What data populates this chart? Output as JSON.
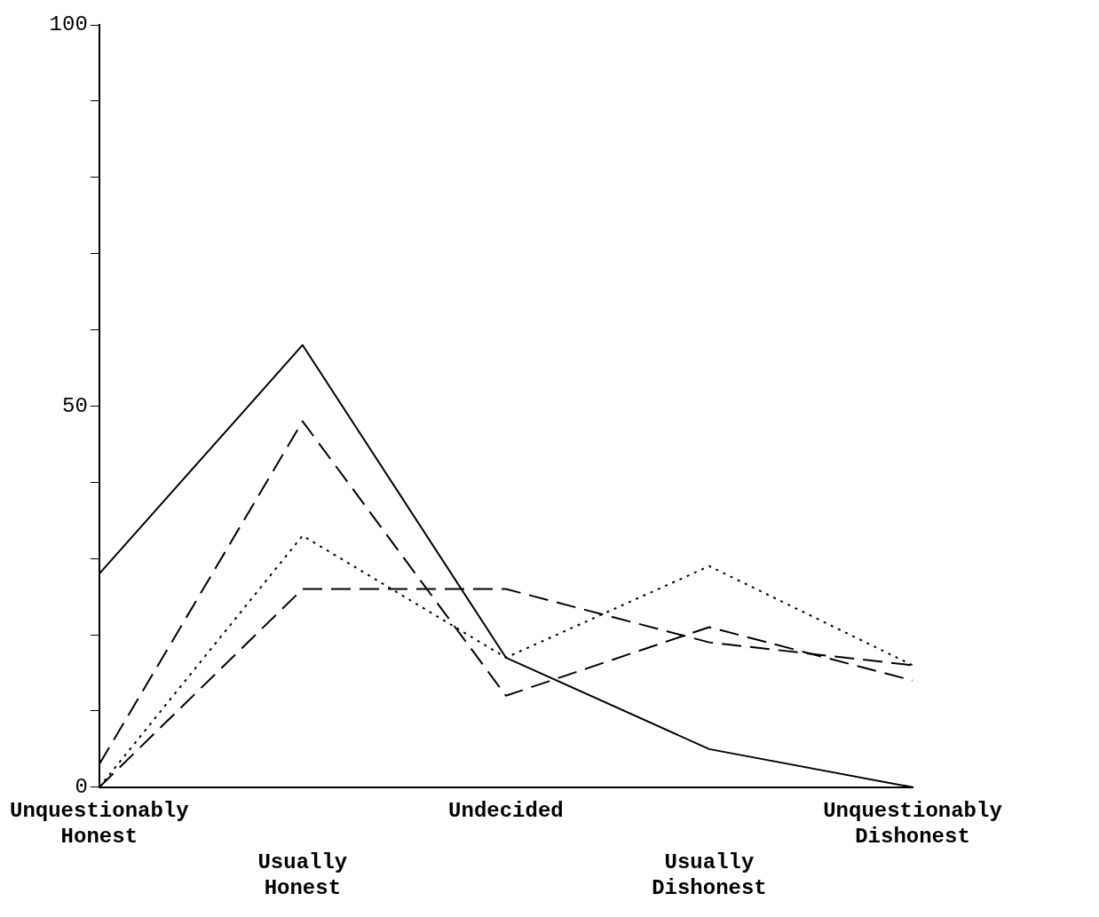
{
  "chart_data": {
    "type": "line",
    "categories": [
      "Unquestionably Honest",
      "Usually Honest",
      "Undecided",
      "Usually Dishonest",
      "Unquestionably Dishonest"
    ],
    "series": [
      {
        "color": "#000000",
        "line_style": "solid",
        "values": [
          28,
          58,
          17,
          5,
          0
        ]
      },
      {
        "color": "#000000",
        "line_style": "dashed",
        "values": [
          3,
          48,
          12,
          21,
          14
        ]
      },
      {
        "color": "#000000",
        "line_style": "dotted",
        "values": [
          0,
          33,
          17,
          29,
          16
        ]
      },
      {
        "color": "#000000",
        "line_style": "dashed",
        "values": [
          0,
          26,
          26,
          19,
          16
        ]
      }
    ],
    "ylim": [
      0,
      100
    ],
    "yticks": [
      0,
      {
        "value": 10,
        "label": null
      },
      {
        "value": 20,
        "label": null
      },
      {
        "value": 30,
        "label": null
      },
      {
        "value": 40,
        "label": null
      },
      50,
      {
        "value": 60,
        "label": null
      },
      {
        "value": 70,
        "label": null
      },
      {
        "value": 80,
        "label": null
      },
      {
        "value": 90,
        "label": null
      },
      100
    ],
    "grid": false,
    "legend": false,
    "marker": "none"
  }
}
